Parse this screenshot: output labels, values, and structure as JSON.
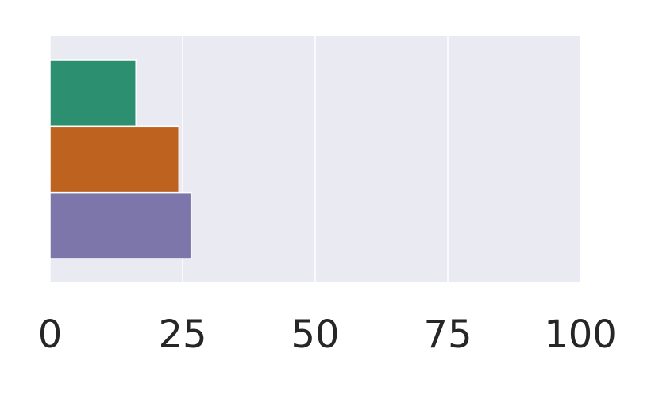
{
  "chart_data": {
    "type": "bar",
    "orientation": "horizontal",
    "categories": [
      null,
      null,
      null
    ],
    "values": [
      16.2,
      24.3,
      26.6
    ],
    "colors": [
      "#2c8f6f",
      "#be621f",
      "#7c76aa"
    ],
    "xlim": [
      0,
      100
    ],
    "xticks": [
      0,
      25,
      50,
      75,
      100
    ],
    "grid": true
  }
}
